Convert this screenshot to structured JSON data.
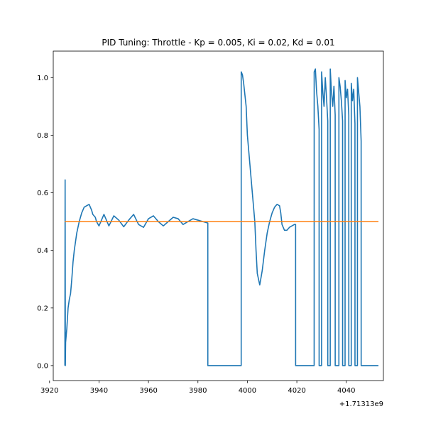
{
  "chart_data": {
    "type": "line",
    "title": "PID Tuning: Throttle - Kp = 0.005, Ki = 0.02, Kd = 0.01",
    "xlabel": "",
    "ylabel": "",
    "x_offset_label": "+1.71313e9",
    "xlim": [
      3921.5,
      4055
    ],
    "ylim": [
      -0.052,
      1.092
    ],
    "x_ticks": [
      3920,
      3940,
      3960,
      3980,
      4000,
      4020,
      4040
    ],
    "x_tick_labels": [
      "3920",
      "3940",
      "3960",
      "3980",
      "4000",
      "4020",
      "4040"
    ],
    "y_ticks": [
      0.0,
      0.2,
      0.4,
      0.6,
      0.8,
      1.0
    ],
    "y_tick_labels": [
      "0.0",
      "0.2",
      "0.4",
      "0.6",
      "0.8",
      "1.0"
    ],
    "grid": false,
    "legend": false,
    "series": [
      {
        "color": "#1f77b4",
        "x": [
          3926.2,
          3926.3,
          3926.4,
          3926.5,
          3926.7,
          3927.0,
          3927.5,
          3928.0,
          3928.5,
          3929.0,
          3929.5,
          3930.0,
          3930.5,
          3931.0,
          3931.5,
          3932.0,
          3933.0,
          3934.0,
          3935.0,
          3936.0,
          3937.0,
          3937.5,
          3938.0,
          3938.5,
          3939.0,
          3940.0,
          3942.0,
          3944.0,
          3946.0,
          3948.0,
          3950.0,
          3952.0,
          3954.0,
          3956.0,
          3958.0,
          3960.0,
          3962.0,
          3964.0,
          3966.0,
          3968.0,
          3970.0,
          3972.0,
          3974.0,
          3976.0,
          3978.0,
          3980.0,
          3982.0,
          3984.0,
          3984.01,
          3997.5,
          3997.51,
          3998.0,
          3998.5,
          3999.0,
          3999.5,
          4000.0,
          4001.0,
          4002.0,
          4003.0,
          4003.5,
          4004.0,
          4005.0,
          4006.0,
          4007.0,
          4008.0,
          4009.0,
          4010.0,
          4011.0,
          4012.0,
          4013.0,
          4013.5,
          4014.0,
          4015.0,
          4016.0,
          4017.0,
          4018.0,
          4019.0,
          4019.5,
          4019.51,
          4027.0,
          4027.01,
          4027.5,
          4028.0,
          4028.5,
          4029.0,
          4029.01,
          4030.0,
          4030.01,
          4030.5,
          4031.0,
          4031.5,
          4032.0,
          4032.5,
          4032.51,
          4033.5,
          4033.51,
          4034.0,
          4034.5,
          4035.0,
          4035.5,
          4035.51,
          4037.0,
          4037.01,
          4037.5,
          4038.0,
          4038.5,
          4038.51,
          4039.5,
          4039.51,
          4040.0,
          4040.5,
          4041.0,
          4041.01,
          4042.0,
          4042.01,
          4042.5,
          4043.0,
          4043.5,
          4043.51,
          4044.5,
          4044.51,
          4045.0,
          4045.5,
          4046.0,
          4046.01,
          4053.0
        ],
        "y": [
          0.0,
          0.645,
          0.0,
          0.08,
          0.1,
          0.13,
          0.2,
          0.23,
          0.25,
          0.3,
          0.36,
          0.4,
          0.43,
          0.46,
          0.48,
          0.5,
          0.53,
          0.55,
          0.555,
          0.56,
          0.54,
          0.525,
          0.52,
          0.515,
          0.5,
          0.485,
          0.525,
          0.485,
          0.52,
          0.505,
          0.482,
          0.505,
          0.525,
          0.49,
          0.48,
          0.51,
          0.52,
          0.5,
          0.485,
          0.5,
          0.515,
          0.51,
          0.49,
          0.5,
          0.51,
          0.505,
          0.5,
          0.495,
          0.0,
          0.0,
          1.02,
          1.01,
          0.98,
          0.94,
          0.9,
          0.8,
          0.7,
          0.6,
          0.5,
          0.4,
          0.32,
          0.28,
          0.33,
          0.4,
          0.46,
          0.5,
          0.53,
          0.55,
          0.56,
          0.555,
          0.53,
          0.49,
          0.47,
          0.47,
          0.48,
          0.485,
          0.49,
          0.49,
          0.0,
          0.0,
          1.02,
          1.03,
          0.95,
          0.9,
          0.82,
          0.0,
          0.0,
          1.02,
          0.95,
          0.9,
          1.0,
          0.93,
          0.85,
          0.0,
          0.0,
          1.03,
          0.95,
          0.9,
          0.97,
          0.87,
          0.0,
          0.0,
          1.0,
          0.97,
          0.92,
          0.85,
          0.0,
          0.0,
          0.99,
          0.93,
          0.96,
          0.87,
          0.0,
          0.0,
          0.98,
          0.92,
          0.96,
          0.84,
          0.0,
          0.0,
          1.0,
          0.95,
          0.9,
          0.78,
          0.0,
          0.0
        ]
      },
      {
        "color": "#ff7f0e",
        "x": [
          3926.2,
          4053.0
        ],
        "y": [
          0.5,
          0.5
        ]
      }
    ]
  }
}
